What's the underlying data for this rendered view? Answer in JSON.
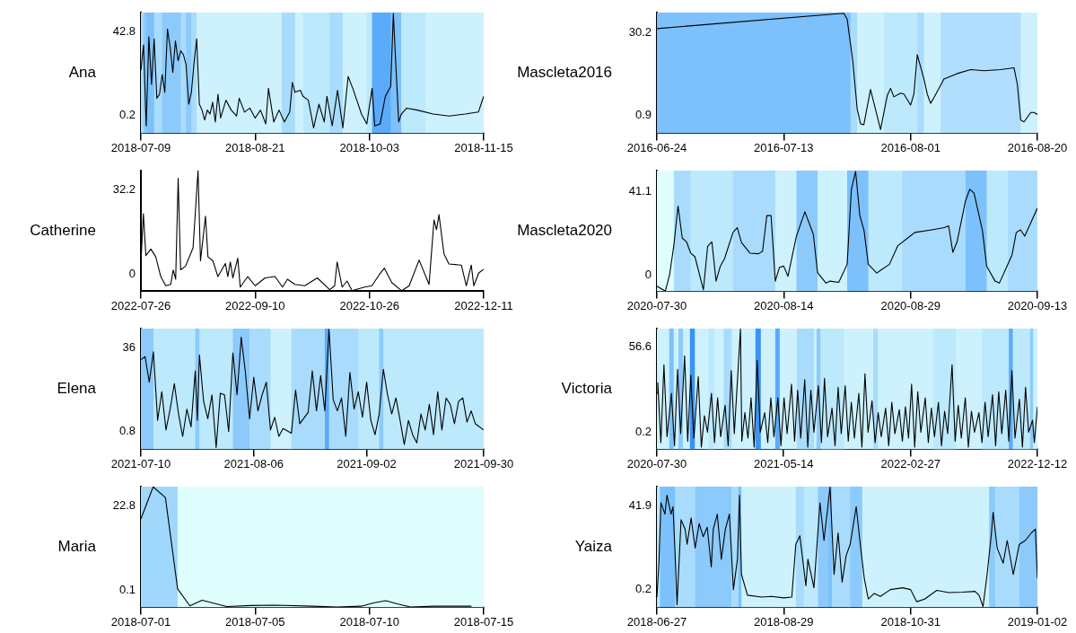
{
  "chart_data": [
    {
      "type": "line",
      "ylabel": "Ana",
      "color": "#000000",
      "xlim": [
        "2018-07-09",
        "2018-11-15"
      ],
      "xticks": [
        {
          "value": "2018-07-09",
          "label": "2018-07-09"
        },
        {
          "value": "2018-08-21",
          "label": "2018-08-21"
        },
        {
          "value": "2018-10-03",
          "label": "2018-10-03"
        },
        {
          "value": "2018-11-15",
          "label": "2018-11-15"
        }
      ],
      "ylim": [
        -8.7,
        52.4
      ],
      "yticks": [
        0.2,
        42.8
      ],
      "x": [
        "2018-07-09",
        "2018-07-10",
        "2018-07-11",
        "2018-07-12",
        "2018-07-13",
        "2018-07-14",
        "2018-07-15",
        "2018-07-16",
        "2018-07-17",
        "2018-07-18",
        "2018-07-19",
        "2018-07-20",
        "2018-07-21",
        "2018-07-22",
        "2018-07-23",
        "2018-07-24",
        "2018-07-25",
        "2018-07-26",
        "2018-07-27",
        "2018-07-28",
        "2018-07-29",
        "2018-07-30",
        "2018-07-31",
        "2018-08-01",
        "2018-08-02",
        "2018-08-03",
        "2018-08-04",
        "2018-08-05",
        "2018-08-06",
        "2018-08-07",
        "2018-08-08",
        "2018-08-10",
        "2018-08-12",
        "2018-08-14",
        "2018-08-15",
        "2018-08-17",
        "2018-08-19",
        "2018-08-21",
        "2018-08-23",
        "2018-08-25",
        "2018-08-26",
        "2018-08-28",
        "2018-08-30",
        "2018-09-01",
        "2018-09-03",
        "2018-09-04",
        "2018-09-05",
        "2018-09-07",
        "2018-09-08",
        "2018-09-10",
        "2018-09-12",
        "2018-09-14",
        "2018-09-16",
        "2018-09-17",
        "2018-09-19",
        "2018-09-21",
        "2018-09-23",
        "2018-09-25",
        "2018-09-27",
        "2018-09-28",
        "2018-09-30",
        "2018-10-02",
        "2018-10-04",
        "2018-10-05",
        "2018-10-07",
        "2018-10-09",
        "2018-10-11",
        "2018-10-12",
        "2018-10-13",
        "2018-10-14",
        "2018-10-15",
        "2018-10-17",
        "2018-10-21",
        "2018-10-27",
        "2018-11-02",
        "2018-11-08",
        "2018-11-13",
        "2018-11-15"
      ],
      "values": [
        23,
        36,
        -5,
        40,
        16,
        39,
        9,
        11,
        21,
        12,
        44,
        35,
        22,
        38,
        28,
        33,
        31,
        26,
        6,
        12,
        27,
        39,
        6,
        3,
        -2,
        3,
        1,
        7,
        -3,
        11,
        -1,
        8,
        3,
        0,
        9,
        2,
        4,
        -1,
        3,
        -4,
        14,
        -3,
        3,
        -3,
        2,
        17,
        12,
        13,
        10,
        8,
        -6,
        6,
        -3,
        10,
        -5,
        13,
        -6,
        20,
        13,
        9,
        1,
        -4,
        14,
        -5,
        -4,
        10,
        15,
        52,
        24,
        -3,
        1,
        4,
        3,
        1,
        0,
        1,
        2,
        10
      ],
      "bands": [
        {
          "axis": "x",
          "from": "2018-07-09",
          "to": "2018-07-10",
          "color": "#a9dcfc"
        },
        {
          "axis": "x",
          "from": "2018-07-10",
          "to": "2018-07-11",
          "color": "#8ccafb"
        },
        {
          "axis": "x",
          "from": "2018-07-11",
          "to": "2018-07-14",
          "color": "#7cc1fb"
        },
        {
          "axis": "x",
          "from": "2018-07-14",
          "to": "2018-07-17",
          "color": "#a9dcfc"
        },
        {
          "axis": "x",
          "from": "2018-07-17",
          "to": "2018-07-24",
          "color": "#8ccafb"
        },
        {
          "axis": "x",
          "from": "2018-07-24",
          "to": "2018-07-26",
          "color": "#a9dcfc"
        },
        {
          "axis": "x",
          "from": "2018-07-26",
          "to": "2018-07-28",
          "color": "#8ccafb"
        },
        {
          "axis": "x",
          "from": "2018-07-28",
          "to": "2018-07-30",
          "color": "#a9dcfc"
        },
        {
          "axis": "x",
          "from": "2018-07-30",
          "to": "2018-08-31",
          "color": "#cdf2fd"
        },
        {
          "axis": "x",
          "from": "2018-08-31",
          "to": "2018-09-05",
          "color": "#a9dcfc"
        },
        {
          "axis": "x",
          "from": "2018-09-05",
          "to": "2018-09-08",
          "color": "#cdf2fd"
        },
        {
          "axis": "x",
          "from": "2018-09-08",
          "to": "2018-09-18",
          "color": "#bde9fd"
        },
        {
          "axis": "x",
          "from": "2018-09-18",
          "to": "2018-09-23",
          "color": "#a9dcfc"
        },
        {
          "axis": "x",
          "from": "2018-09-23",
          "to": "2018-10-02",
          "color": "#cdf2fd"
        },
        {
          "axis": "x",
          "from": "2018-10-02",
          "to": "2018-10-04",
          "color": "#bde9fd"
        },
        {
          "axis": "x",
          "from": "2018-10-04",
          "to": "2018-10-11",
          "color": "#5aabfa"
        },
        {
          "axis": "x",
          "from": "2018-10-11",
          "to": "2018-10-15",
          "color": "#7cc1fb"
        },
        {
          "axis": "x",
          "from": "2018-10-15",
          "to": "2018-10-24",
          "color": "#bde9fd"
        },
        {
          "axis": "x",
          "from": "2018-10-24",
          "to": "2018-11-15",
          "color": "#cdf2fd"
        }
      ]
    },
    {
      "type": "line",
      "ylabel": "Mascleta2016",
      "color": "#000000",
      "xlim": [
        "2016-06-24",
        "2016-08-20"
      ],
      "xticks": [
        {
          "value": "2016-06-24",
          "label": "2016-06-24"
        },
        {
          "value": "2016-07-13",
          "label": "2016-07-13"
        },
        {
          "value": "2016-08-01",
          "label": "2016-08-01"
        },
        {
          "value": "2016-08-20",
          "label": "2016-08-20"
        }
      ],
      "ylim": [
        -5.3,
        37.2
      ],
      "yticks": [
        0.9,
        30.2
      ],
      "x": [
        "2016-06-24",
        "2016-07-22",
        "2016-07-22T12:00",
        "2016-07-23T08:00",
        "2016-07-24",
        "2016-07-24T12:00",
        "2016-07-25",
        "2016-07-26",
        "2016-07-27T12:00",
        "2016-07-28T12:00",
        "2016-07-29",
        "2016-07-29T12:00",
        "2016-07-30T12:00",
        "2016-07-31",
        "2016-08-01",
        "2016-08-01T12:00",
        "2016-08-02",
        "2016-08-03",
        "2016-08-03T12:00",
        "2016-08-04",
        "2016-08-04T12:00",
        "2016-08-06",
        "2016-08-08",
        "2016-08-10",
        "2016-08-12",
        "2016-08-14T12:00",
        "2016-08-16T12:00",
        "2016-08-17",
        "2016-08-17T12:00",
        "2016-08-18",
        "2016-08-19",
        "2016-08-19T12:00",
        "2016-08-20"
      ],
      "values": [
        31.5,
        36.9,
        34.8,
        20.3,
        3.3,
        -2.0,
        -2.3,
        10.1,
        -4.0,
        7.9,
        10.5,
        7.5,
        8.8,
        8.5,
        4.6,
        8.5,
        22.3,
        13.8,
        8.5,
        5.2,
        7.2,
        13.8,
        15.7,
        17.1,
        16.7,
        17.1,
        17.7,
        11.8,
        -0.7,
        -1.3,
        2.0,
        2.0,
        1.3
      ],
      "bands": [
        {
          "axis": "x",
          "from": "2016-06-24",
          "to": "2016-07-23",
          "color": "#7cc1fb"
        },
        {
          "axis": "x",
          "from": "2016-07-23",
          "to": "2016-07-24",
          "color": "#a9dcfc"
        },
        {
          "axis": "x",
          "from": "2016-07-24",
          "to": "2016-07-28",
          "color": "#cdf2fd"
        },
        {
          "axis": "x",
          "from": "2016-07-28",
          "to": "2016-08-02",
          "color": "#bde9fd"
        },
        {
          "axis": "x",
          "from": "2016-08-02",
          "to": "2016-08-03",
          "color": "#a9dcfc"
        },
        {
          "axis": "x",
          "from": "2016-08-03",
          "to": "2016-08-05T12:00",
          "color": "#cdf2fd"
        },
        {
          "axis": "x",
          "from": "2016-08-05T12:00",
          "to": "2016-08-17T12:00",
          "color": "#b0defc"
        },
        {
          "axis": "x",
          "from": "2016-08-17T12:00",
          "to": "2016-08-20",
          "color": "#cdf2fd"
        }
      ]
    },
    {
      "type": "line",
      "ylabel": "Catherine",
      "color": "#000000",
      "xlim": [
        "2022-07-26",
        "2022-12-11"
      ],
      "xticks": [
        {
          "value": "2022-07-26",
          "label": "2022-07-26"
        },
        {
          "value": "2022-09-10",
          "label": "2022-09-10"
        },
        {
          "value": "2022-10-26",
          "label": "2022-10-26"
        },
        {
          "value": "2022-12-11",
          "label": "2022-12-11"
        }
      ],
      "ylim": [
        -6.6,
        39.5
      ],
      "yticks": [
        0,
        32.2
      ],
      "x": [
        "2022-07-26",
        "2022-07-27",
        "2022-07-28",
        "2022-07-30",
        "2022-08-01",
        "2022-08-03",
        "2022-08-05",
        "2022-08-07",
        "2022-08-08",
        "2022-08-09",
        "2022-08-10",
        "2022-08-11",
        "2022-08-13",
        "2022-08-16",
        "2022-08-18",
        "2022-08-19",
        "2022-08-21",
        "2022-08-22",
        "2022-08-24",
        "2022-08-26",
        "2022-08-29",
        "2022-08-30",
        "2022-08-31",
        "2022-09-01",
        "2022-09-03",
        "2022-09-04",
        "2022-09-07",
        "2022-09-10",
        "2022-09-14",
        "2022-09-18",
        "2022-09-21",
        "2022-09-23",
        "2022-09-26",
        "2022-09-30",
        "2022-10-05",
        "2022-10-10",
        "2022-10-12",
        "2022-10-13",
        "2022-10-15",
        "2022-10-17",
        "2022-10-19",
        "2022-10-24",
        "2022-10-27",
        "2022-10-30",
        "2022-11-01",
        "2022-11-04",
        "2022-11-08",
        "2022-11-11",
        "2022-11-15",
        "2022-11-19",
        "2022-11-21",
        "2022-11-22",
        "2022-11-23",
        "2022-11-25",
        "2022-11-27",
        "2022-12-02",
        "2022-12-04",
        "2022-12-06",
        "2022-12-07",
        "2022-12-09",
        "2022-12-11"
      ],
      "values": [
        4,
        23,
        7,
        9.5,
        6.5,
        -1,
        -4.5,
        -4,
        1.5,
        -2,
        36.5,
        1.6,
        3,
        10,
        39.5,
        5,
        22,
        6.5,
        5,
        -1,
        4,
        -1,
        4.6,
        -1.5,
        6,
        -5,
        -1,
        -4.5,
        -1.5,
        -1,
        -5,
        -2,
        -4,
        -4.5,
        -1.5,
        -6,
        -4.5,
        4.6,
        -5,
        -2.7,
        -6.4,
        -5,
        -4.5,
        -0.2,
        2.2,
        -3.3,
        -6.4,
        -4.5,
        5.3,
        -4,
        20.6,
        16.9,
        22.6,
        7.7,
        3.8,
        3.4,
        -4.5,
        3.4,
        -4.5,
        0.4,
        1.8
      ]
    },
    {
      "type": "line",
      "ylabel": "Mascleta2020",
      "color": "#000000",
      "xlim": [
        "2020-07-30",
        "2020-09-13"
      ],
      "xticks": [
        {
          "value": "2020-07-30",
          "label": "2020-07-30"
        },
        {
          "value": "2020-08-14",
          "label": "2020-08-14"
        },
        {
          "value": "2020-08-29",
          "label": "2020-08-29"
        },
        {
          "value": "2020-09-13",
          "label": "2020-09-13"
        }
      ],
      "ylim": [
        -8.1,
        51.5
      ],
      "yticks": [
        0,
        41.1
      ],
      "x": [
        "2020-07-30",
        "2020-07-31",
        "2020-07-31T12:00",
        "2020-08-01",
        "2020-08-01T12:00",
        "2020-08-02",
        "2020-08-02T12:00",
        "2020-08-03",
        "2020-08-03T12:00",
        "2020-08-04T12:00",
        "2020-08-05",
        "2020-08-05T12:00",
        "2020-08-06",
        "2020-08-06T12:00",
        "2020-08-07",
        "2020-08-08",
        "2020-08-08T12:00",
        "2020-08-09",
        "2020-08-10",
        "2020-08-11",
        "2020-08-11T12:00",
        "2020-08-12",
        "2020-08-12T12:00",
        "2020-08-13",
        "2020-08-13T12:00",
        "2020-08-14",
        "2020-08-14T12:00",
        "2020-08-15T12:00",
        "2020-08-16T12:00",
        "2020-08-17T12:00",
        "2020-08-18",
        "2020-08-19",
        "2020-08-19T12:00",
        "2020-08-20T12:00",
        "2020-08-21T12:00",
        "2020-08-22",
        "2020-08-22T12:00",
        "2020-08-23",
        "2020-08-23T12:00",
        "2020-08-24",
        "2020-08-25",
        "2020-08-25T12:00",
        "2020-08-26T12:00",
        "2020-08-27T12:00",
        "2020-08-29T12:00",
        "2020-08-31T12:00",
        "2020-09-02",
        "2020-09-02T12:00",
        "2020-09-03",
        "2020-09-03T12:00",
        "2020-09-04T12:00",
        "2020-09-05",
        "2020-09-05T12:00",
        "2020-09-06T12:00",
        "2020-09-07",
        "2020-09-08",
        "2020-09-08T12:00",
        "2020-09-10",
        "2020-09-10T12:00",
        "2020-09-11",
        "2020-09-11T12:00",
        "2020-09-13"
      ],
      "values": [
        -5.6,
        -8,
        0,
        14.4,
        33.9,
        18.1,
        16.3,
        10.7,
        8.9,
        -7.4,
        14.1,
        16.3,
        -3.1,
        4.3,
        8,
        20.9,
        23.3,
        15.9,
        10.7,
        10.4,
        11.7,
        29.2,
        29.2,
        -3.1,
        3.7,
        4.3,
        -0.7,
        19.1,
        31.1,
        20,
        1.1,
        -4.1,
        -3.1,
        -3.7,
        5.2,
        42.2,
        51,
        29.2,
        21.8,
        5.2,
        0.9,
        2.4,
        5.2,
        14.4,
        20.9,
        22.2,
        23.3,
        24.2,
        11.1,
        16.3,
        36.6,
        42.2,
        40.4,
        21.8,
        4.3,
        -3.1,
        -4.1,
        9.8,
        20.9,
        22.2,
        19.1,
        32.9
      ],
      "bands": [
        {
          "axis": "x",
          "from": "2020-07-30",
          "to": "2020-08-01",
          "color": "#dfffff"
        },
        {
          "axis": "x",
          "from": "2020-08-01",
          "to": "2020-08-03",
          "color": "#a9dcfc"
        },
        {
          "axis": "x",
          "from": "2020-08-03",
          "to": "2020-08-08",
          "color": "#bde9fd"
        },
        {
          "axis": "x",
          "from": "2020-08-08",
          "to": "2020-08-13",
          "color": "#a9dcfc"
        },
        {
          "axis": "x",
          "from": "2020-08-13",
          "to": "2020-08-15T12:00",
          "color": "#cdf2fd"
        },
        {
          "axis": "x",
          "from": "2020-08-15T12:00",
          "to": "2020-08-18",
          "color": "#8ccafb"
        },
        {
          "axis": "x",
          "from": "2020-08-18",
          "to": "2020-08-21T12:00",
          "color": "#cdf2fd"
        },
        {
          "axis": "x",
          "from": "2020-08-21T12:00",
          "to": "2020-08-24",
          "color": "#7cc1fb"
        },
        {
          "axis": "x",
          "from": "2020-08-24",
          "to": "2020-08-28",
          "color": "#bde9fd"
        },
        {
          "axis": "x",
          "from": "2020-08-28",
          "to": "2020-09-04T12:00",
          "color": "#a9dcfc"
        },
        {
          "axis": "x",
          "from": "2020-09-04T12:00",
          "to": "2020-09-07",
          "color": "#7cc1fb"
        },
        {
          "axis": "x",
          "from": "2020-09-07",
          "to": "2020-09-09T12:00",
          "color": "#bde9fd"
        },
        {
          "axis": "x",
          "from": "2020-09-09T12:00",
          "to": "2020-09-13",
          "color": "#a9dcfc"
        }
      ]
    },
    {
      "type": "line",
      "ylabel": "Elena",
      "color": "#000000",
      "xlim": [
        "2021-07-10",
        "2021-09-30"
      ],
      "xticks": [
        {
          "value": "2021-07-10",
          "label": "2021-07-10"
        },
        {
          "value": "2021-08-06",
          "label": "2021-08-06"
        },
        {
          "value": "2021-09-02",
          "label": "2021-09-02"
        },
        {
          "value": "2021-09-30",
          "label": "2021-09-30"
        }
      ],
      "ylim": [
        -6.6,
        44
      ],
      "yticks": [
        0.8,
        36
      ],
      "x": [
        "2021-07-10",
        "2021-07-11",
        "2021-07-12",
        "2021-07-13",
        "2021-07-14",
        "2021-07-15",
        "2021-07-16",
        "2021-07-17",
        "2021-07-18",
        "2021-07-19",
        "2021-07-20",
        "2021-07-21",
        "2021-07-22",
        "2021-07-23",
        "2021-07-23T12:00",
        "2021-07-24",
        "2021-07-25",
        "2021-07-26",
        "2021-07-27",
        "2021-07-28",
        "2021-07-29",
        "2021-07-30",
        "2021-07-31",
        "2021-08-01",
        "2021-08-02",
        "2021-08-03",
        "2021-08-04",
        "2021-08-05",
        "2021-08-06",
        "2021-08-07",
        "2021-08-08",
        "2021-08-09",
        "2021-08-10",
        "2021-08-11",
        "2021-08-12",
        "2021-08-13",
        "2021-08-15",
        "2021-08-16",
        "2021-08-17",
        "2021-08-19",
        "2021-08-20",
        "2021-08-21",
        "2021-08-22",
        "2021-08-23",
        "2021-08-24",
        "2021-08-25",
        "2021-08-26",
        "2021-08-27",
        "2021-08-28",
        "2021-08-29",
        "2021-08-30",
        "2021-08-31",
        "2021-09-01",
        "2021-09-02",
        "2021-09-03",
        "2021-09-04",
        "2021-09-05",
        "2021-09-06",
        "2021-09-07",
        "2021-09-08",
        "2021-09-09",
        "2021-09-10",
        "2021-09-11",
        "2021-09-12",
        "2021-09-13",
        "2021-09-14",
        "2021-09-15",
        "2021-09-16",
        "2021-09-17",
        "2021-09-18",
        "2021-09-19",
        "2021-09-20",
        "2021-09-21",
        "2021-09-22",
        "2021-09-23",
        "2021-09-24",
        "2021-09-25",
        "2021-09-26",
        "2021-09-27",
        "2021-09-28",
        "2021-09-30"
      ],
      "values": [
        30.9,
        32.2,
        21.5,
        34.2,
        5.5,
        17.5,
        1.5,
        10.2,
        20.9,
        8.2,
        -1.2,
        10.2,
        2.8,
        26.2,
        5.5,
        32.9,
        13.5,
        6.2,
        16.2,
        -5.9,
        16.9,
        16.2,
        0.8,
        33.8,
        16.2,
        40.3,
        25.6,
        6.2,
        23.6,
        9.5,
        16.2,
        21.5,
        1.5,
        6.8,
        -1.2,
        2.1,
        0.1,
        18.2,
        4.1,
        8.8,
        26.2,
        9.5,
        24.3,
        9.5,
        43.6,
        14.2,
        9.5,
        14.9,
        -1.2,
        25.6,
        10.2,
        17.5,
        6.8,
        21.5,
        5.5,
        -0.5,
        8.2,
        26.9,
        16.2,
        8.2,
        14.9,
        5.5,
        -4.6,
        5.5,
        -0.5,
        -3.9,
        8.2,
        1.5,
        12.2,
        -0.5,
        17.5,
        1.5,
        14.9,
        12.2,
        4.1,
        13.5,
        14.9,
        4.8,
        9.5,
        4.1,
        1.5
      ],
      "bands": [
        {
          "axis": "x",
          "from": "2021-07-10",
          "to": "2021-07-13",
          "color": "#8ccafb"
        },
        {
          "axis": "x",
          "from": "2021-07-13",
          "to": "2021-07-23",
          "color": "#bde9fd"
        },
        {
          "axis": "x",
          "from": "2021-07-23",
          "to": "2021-07-24",
          "color": "#8ccafb"
        },
        {
          "axis": "x",
          "from": "2021-07-24",
          "to": "2021-08-01",
          "color": "#bde9fd"
        },
        {
          "axis": "x",
          "from": "2021-08-01",
          "to": "2021-08-05",
          "color": "#8ccafb"
        },
        {
          "axis": "x",
          "from": "2021-08-05",
          "to": "2021-08-10",
          "color": "#a9dcfc"
        },
        {
          "axis": "x",
          "from": "2021-08-10",
          "to": "2021-08-15",
          "color": "#cdf2fd"
        },
        {
          "axis": "x",
          "from": "2021-08-15",
          "to": "2021-08-23",
          "color": "#a9dcfc"
        },
        {
          "axis": "x",
          "from": "2021-08-23",
          "to": "2021-08-24",
          "color": "#5aabfa"
        },
        {
          "axis": "x",
          "from": "2021-08-24",
          "to": "2021-08-31",
          "color": "#a9dcfc"
        },
        {
          "axis": "x",
          "from": "2021-08-31",
          "to": "2021-09-05",
          "color": "#bde9fd"
        },
        {
          "axis": "x",
          "from": "2021-09-05",
          "to": "2021-09-06",
          "color": "#8ccafb"
        },
        {
          "axis": "x",
          "from": "2021-09-06",
          "to": "2021-09-30",
          "color": "#bde9fd"
        }
      ]
    },
    {
      "type": "line",
      "ylabel": "Victoria",
      "color": "#000000",
      "xlim": [
        "2020-07-30",
        "2022-12-12"
      ],
      "xticks": [
        {
          "value": "2020-07-30",
          "label": "2020-07-30"
        },
        {
          "value": "2021-05-14",
          "label": "2021-05-14"
        },
        {
          "value": "2022-02-27",
          "label": "2022-02-27"
        },
        {
          "value": "2022-12-12",
          "label": "2022-12-12"
        }
      ],
      "ylim": [
        -11.4,
        69.2
      ],
      "yticks": [
        0.2,
        56.6
      ],
      "x": [
        "2020-07-30",
        "2020-08-01",
        "2020-08-08",
        "2020-08-15",
        "2020-08-22",
        "2020-09-01",
        "2020-09-08",
        "2020-09-15",
        "2020-09-22",
        "2020-10-01",
        "2020-10-08",
        "2020-10-15",
        "2020-10-22",
        "2020-11-01",
        "2020-11-08",
        "2020-11-15",
        "2020-11-22",
        "2020-12-01",
        "2020-12-08",
        "2020-12-15",
        "2020-12-22",
        "2021-01-01",
        "2021-01-08",
        "2021-01-15",
        "2021-01-22",
        "2021-02-05",
        "2021-02-08",
        "2021-02-15",
        "2021-02-22",
        "2021-03-01",
        "2021-03-08",
        "2021-03-15",
        "2021-03-22",
        "2021-04-01",
        "2021-04-08",
        "2021-04-15",
        "2021-04-22",
        "2021-05-01",
        "2021-05-08",
        "2021-05-15",
        "2021-05-22",
        "2021-06-01",
        "2021-06-08",
        "2021-06-15",
        "2021-06-22",
        "2021-07-01",
        "2021-07-08",
        "2021-07-15",
        "2021-07-22",
        "2021-08-01",
        "2021-08-08",
        "2021-08-15",
        "2021-08-22",
        "2021-09-01",
        "2021-09-08",
        "2021-09-15",
        "2021-09-22",
        "2021-10-01",
        "2021-10-08",
        "2021-10-15",
        "2021-10-22",
        "2021-11-01",
        "2021-11-08",
        "2021-11-15",
        "2021-11-22",
        "2021-12-01",
        "2021-12-08",
        "2021-12-15",
        "2021-12-22",
        "2022-01-01",
        "2022-01-08",
        "2022-01-15",
        "2022-01-22",
        "2022-02-01",
        "2022-02-08",
        "2022-02-15",
        "2022-02-22",
        "2022-03-01",
        "2022-03-08",
        "2022-03-15",
        "2022-03-22",
        "2022-04-01",
        "2022-04-08",
        "2022-04-15",
        "2022-04-22",
        "2022-05-01",
        "2022-05-08",
        "2022-05-15",
        "2022-05-22",
        "2022-06-01",
        "2022-06-08",
        "2022-06-15",
        "2022-06-22",
        "2022-07-01",
        "2022-07-08",
        "2022-07-15",
        "2022-07-22",
        "2022-08-01",
        "2022-08-08",
        "2022-08-15",
        "2022-08-22",
        "2022-09-01",
        "2022-09-08",
        "2022-09-15",
        "2022-09-22",
        "2022-10-01",
        "2022-10-08",
        "2022-10-15",
        "2022-10-22",
        "2022-11-01",
        "2022-11-08",
        "2022-11-15",
        "2022-11-22",
        "2022-12-01",
        "2022-12-05",
        "2022-12-12"
      ],
      "values": [
        26,
        33,
        -7,
        45,
        -3,
        26,
        -9,
        42,
        -1,
        51,
        -6,
        38,
        -4,
        37,
        -10,
        11,
        0,
        26,
        -7,
        23,
        -3,
        18,
        -9,
        41,
        -1,
        69,
        -6,
        13,
        -4,
        23,
        -10,
        48,
        0,
        13,
        -7,
        23,
        -3,
        23,
        -9,
        23,
        -1,
        32,
        -6,
        28,
        -4,
        35,
        -10,
        28,
        0,
        31,
        -7,
        36,
        -3,
        16,
        -9,
        30,
        -1,
        31,
        -6,
        20,
        -4,
        26,
        -10,
        39,
        0,
        21,
        -7,
        13,
        -3,
        16,
        -9,
        20,
        -1,
        15,
        -6,
        17,
        -4,
        32,
        -10,
        27,
        0,
        23,
        -7,
        16,
        -3,
        20,
        -9,
        14,
        -1,
        45,
        -6,
        18,
        -4,
        23,
        -10,
        14,
        0,
        13,
        -7,
        20,
        -3,
        25,
        -9,
        27,
        -1,
        28,
        -6,
        41,
        -4,
        22,
        -10,
        30,
        0,
        8,
        -7,
        17
      ],
      "bands": [
        {
          "axis": "x",
          "from": "2020-07-30",
          "to": "2022-12-12",
          "color": "#cdf2fd"
        },
        {
          "axis": "x",
          "from": "2020-08-27",
          "to": "2020-09-05",
          "color": "#7cc1fb"
        },
        {
          "axis": "x",
          "from": "2020-09-17",
          "to": "2020-09-26",
          "color": "#8ccafb"
        },
        {
          "axis": "x",
          "from": "2020-10-13",
          "to": "2020-10-23",
          "color": "#3b93f5"
        },
        {
          "axis": "x",
          "from": "2020-11-24",
          "to": "2020-12-07",
          "color": "#bde9fd"
        },
        {
          "axis": "x",
          "from": "2020-12-29",
          "to": "2021-01-15",
          "color": "#a9dcfc"
        },
        {
          "axis": "x",
          "from": "2021-03-11",
          "to": "2021-03-22",
          "color": "#3b93f5"
        },
        {
          "axis": "x",
          "from": "2021-04-25",
          "to": "2021-05-04",
          "color": "#5aabfa"
        },
        {
          "axis": "x",
          "from": "2021-06-13",
          "to": "2021-07-21",
          "color": "#a9dcfc"
        },
        {
          "axis": "x",
          "from": "2021-07-28",
          "to": "2021-08-05",
          "color": "#8ccafb"
        },
        {
          "axis": "x",
          "from": "2021-08-07",
          "to": "2021-09-27",
          "color": "#bde9fd"
        },
        {
          "axis": "x",
          "from": "2021-12-04",
          "to": "2021-12-13",
          "color": "#a9dcfc"
        },
        {
          "axis": "x",
          "from": "2022-04-19",
          "to": "2022-06-09",
          "color": "#bde9fd"
        },
        {
          "axis": "x",
          "from": "2022-08-08",
          "to": "2022-10-07",
          "color": "#bde9fd"
        },
        {
          "axis": "x",
          "from": "2022-10-08",
          "to": "2022-10-17",
          "color": "#5aabfa"
        },
        {
          "axis": "x",
          "from": "2022-10-17",
          "to": "2022-11-22",
          "color": "#bde9fd"
        },
        {
          "axis": "x",
          "from": "2022-11-25",
          "to": "2022-12-01",
          "color": "#8ccafb"
        }
      ]
    },
    {
      "type": "line",
      "ylabel": "Maria",
      "color": "#000000",
      "xlim": [
        "2018-07-01",
        "2018-07-15"
      ],
      "xticks": [
        {
          "value": "2018-07-01",
          "label": "2018-07-01"
        },
        {
          "value": "2018-07-05T16:00",
          "label": "2018-07-05"
        },
        {
          "value": "2018-07-10T08:00",
          "label": "2018-07-10"
        },
        {
          "value": "2018-07-15",
          "label": "2018-07-15"
        }
      ],
      "ylim": [
        -4.6,
        28.1
      ],
      "yticks": [
        0.1,
        22.8
      ],
      "x": [
        "2018-07-01",
        "2018-07-01T12:00",
        "2018-07-02",
        "2018-07-02T12:00",
        "2018-07-03",
        "2018-07-03T12:00",
        "2018-07-04T12:00",
        "2018-07-05T12:00",
        "2018-07-06T12:00",
        "2018-07-08",
        "2018-07-09",
        "2018-07-10",
        "2018-07-10T12:00",
        "2018-07-11",
        "2018-07-11T12:00",
        "2018-07-12",
        "2018-07-13",
        "2018-07-14T12:00"
      ],
      "values": [
        19.3,
        28.0,
        25.1,
        0.4,
        -4.2,
        -2.7,
        -4.4,
        -4.1,
        -4.0,
        -4.3,
        -4.5,
        -4.3,
        -3.4,
        -2.8,
        -3.7,
        -4.5,
        -4.3,
        -4.3
      ],
      "bands": [
        {
          "axis": "x",
          "from": "2018-07-01",
          "to": "2018-07-02T12:00",
          "color": "#a0d8fc"
        },
        {
          "axis": "x",
          "from": "2018-07-02T12:00",
          "to": "2018-07-15",
          "color": "#dfffff"
        }
      ]
    },
    {
      "type": "line",
      "ylabel": "Yaiza",
      "color": "#000000",
      "xlim": [
        "2018-06-27",
        "2019-01-02"
      ],
      "xticks": [
        {
          "value": "2018-06-27",
          "label": "2018-06-27"
        },
        {
          "value": "2018-08-29",
          "label": "2018-08-29"
        },
        {
          "value": "2018-10-31",
          "label": "2018-10-31"
        },
        {
          "value": "2019-01-02",
          "label": "2019-01-02"
        }
      ],
      "ylim": [
        -8.6,
        51.3
      ],
      "yticks": [
        0.2,
        41.9
      ],
      "x": [
        "2018-06-27",
        "2018-06-28",
        "2018-06-29",
        "2018-07-01",
        "2018-07-02",
        "2018-07-04",
        "2018-07-05",
        "2018-07-06",
        "2018-07-07",
        "2018-07-09",
        "2018-07-11",
        "2018-07-12",
        "2018-07-14",
        "2018-07-16",
        "2018-07-18",
        "2018-07-20",
        "2018-07-22",
        "2018-07-24",
        "2018-07-25",
        "2018-07-27",
        "2018-07-29",
        "2018-07-31",
        "2018-08-02",
        "2018-08-04",
        "2018-08-06",
        "2018-08-07",
        "2018-08-08",
        "2018-08-11",
        "2018-08-18",
        "2018-08-23",
        "2018-08-29",
        "2018-09-02",
        "2018-09-04",
        "2018-09-06",
        "2018-09-09",
        "2018-09-10",
        "2018-09-13",
        "2018-09-16",
        "2018-09-18",
        "2018-09-21",
        "2018-09-23",
        "2018-09-25",
        "2018-09-27",
        "2018-09-29",
        "2018-10-01",
        "2018-10-04",
        "2018-10-06",
        "2018-10-08",
        "2018-10-10",
        "2018-10-13",
        "2018-10-16",
        "2018-10-21",
        "2018-10-27",
        "2018-10-31",
        "2018-11-03",
        "2018-11-07",
        "2018-11-13",
        "2018-11-19",
        "2018-11-26",
        "2018-12-02",
        "2018-12-04",
        "2018-12-06",
        "2018-12-08",
        "2018-12-10",
        "2018-12-11",
        "2018-12-13",
        "2018-12-16",
        "2018-12-18",
        "2018-12-21",
        "2018-12-24",
        "2018-12-27",
        "2018-12-30",
        "2019-01-01",
        "2019-01-02"
      ],
      "values": [
        -3.5,
        13.3,
        43.2,
        37.6,
        47,
        37.6,
        41.3,
        18.9,
        -7.3,
        34.8,
        30.1,
        22.6,
        35.7,
        20.8,
        32.9,
        26.4,
        31.1,
        11.4,
        30.1,
        37.6,
        15.2,
        30.1,
        37.6,
        0.2,
        15.2,
        47,
        7.7,
        -2.6,
        -3.5,
        -3.2,
        -3.9,
        -3.5,
        22.6,
        26.8,
        2.1,
        15.2,
        1.1,
        43.2,
        24.5,
        51,
        7.7,
        28.3,
        3.9,
        17,
        22.6,
        41.3,
        22.6,
        5.8,
        -4.5,
        -1.7,
        -3.2,
        0.2,
        1.1,
        0.2,
        -5.8,
        -4.5,
        -0.2,
        -1.3,
        -1.1,
        -0.7,
        -2.6,
        -8.2,
        7.7,
        26.4,
        38.5,
        20.8,
        13.3,
        24.5,
        7.7,
        22.6,
        24.5,
        28.3,
        30.1,
        5.8
      ],
      "bands": [
        {
          "axis": "x",
          "from": "2018-06-27",
          "to": "2018-06-28T12:00",
          "color": "#bde9fd"
        },
        {
          "axis": "x",
          "from": "2018-06-28T12:00",
          "to": "2018-07-06",
          "color": "#7cc1fb"
        },
        {
          "axis": "x",
          "from": "2018-07-06",
          "to": "2018-07-16",
          "color": "#a9dcfc"
        },
        {
          "axis": "x",
          "from": "2018-07-16",
          "to": "2018-08-03",
          "color": "#8ccafb"
        },
        {
          "axis": "x",
          "from": "2018-08-03",
          "to": "2018-08-06T12:00",
          "color": "#a9dcfc"
        },
        {
          "axis": "x",
          "from": "2018-08-06T12:00",
          "to": "2018-08-08",
          "color": "#7cc1fb"
        },
        {
          "axis": "x",
          "from": "2018-08-08",
          "to": "2018-09-04",
          "color": "#cdf2fd"
        },
        {
          "axis": "x",
          "from": "2018-09-04",
          "to": "2018-09-08",
          "color": "#a9dcfc"
        },
        {
          "axis": "x",
          "from": "2018-09-08",
          "to": "2018-09-15",
          "color": "#bde9fd"
        },
        {
          "axis": "x",
          "from": "2018-09-15",
          "to": "2018-09-20",
          "color": "#8ccafb"
        },
        {
          "axis": "x",
          "from": "2018-09-20",
          "to": "2018-09-22",
          "color": "#7cc1fb"
        },
        {
          "axis": "x",
          "from": "2018-09-22",
          "to": "2018-10-01",
          "color": "#a9dcfc"
        },
        {
          "axis": "x",
          "from": "2018-10-01",
          "to": "2018-10-07",
          "color": "#8ccafb"
        },
        {
          "axis": "x",
          "from": "2018-10-07",
          "to": "2018-12-09",
          "color": "#cdf2fd"
        },
        {
          "axis": "x",
          "from": "2018-12-09",
          "to": "2018-12-12",
          "color": "#8ccafb"
        },
        {
          "axis": "x",
          "from": "2018-12-12",
          "to": "2018-12-24",
          "color": "#a9dcfc"
        },
        {
          "axis": "x",
          "from": "2018-12-24",
          "to": "2019-01-02",
          "color": "#8ccafb"
        }
      ]
    }
  ]
}
